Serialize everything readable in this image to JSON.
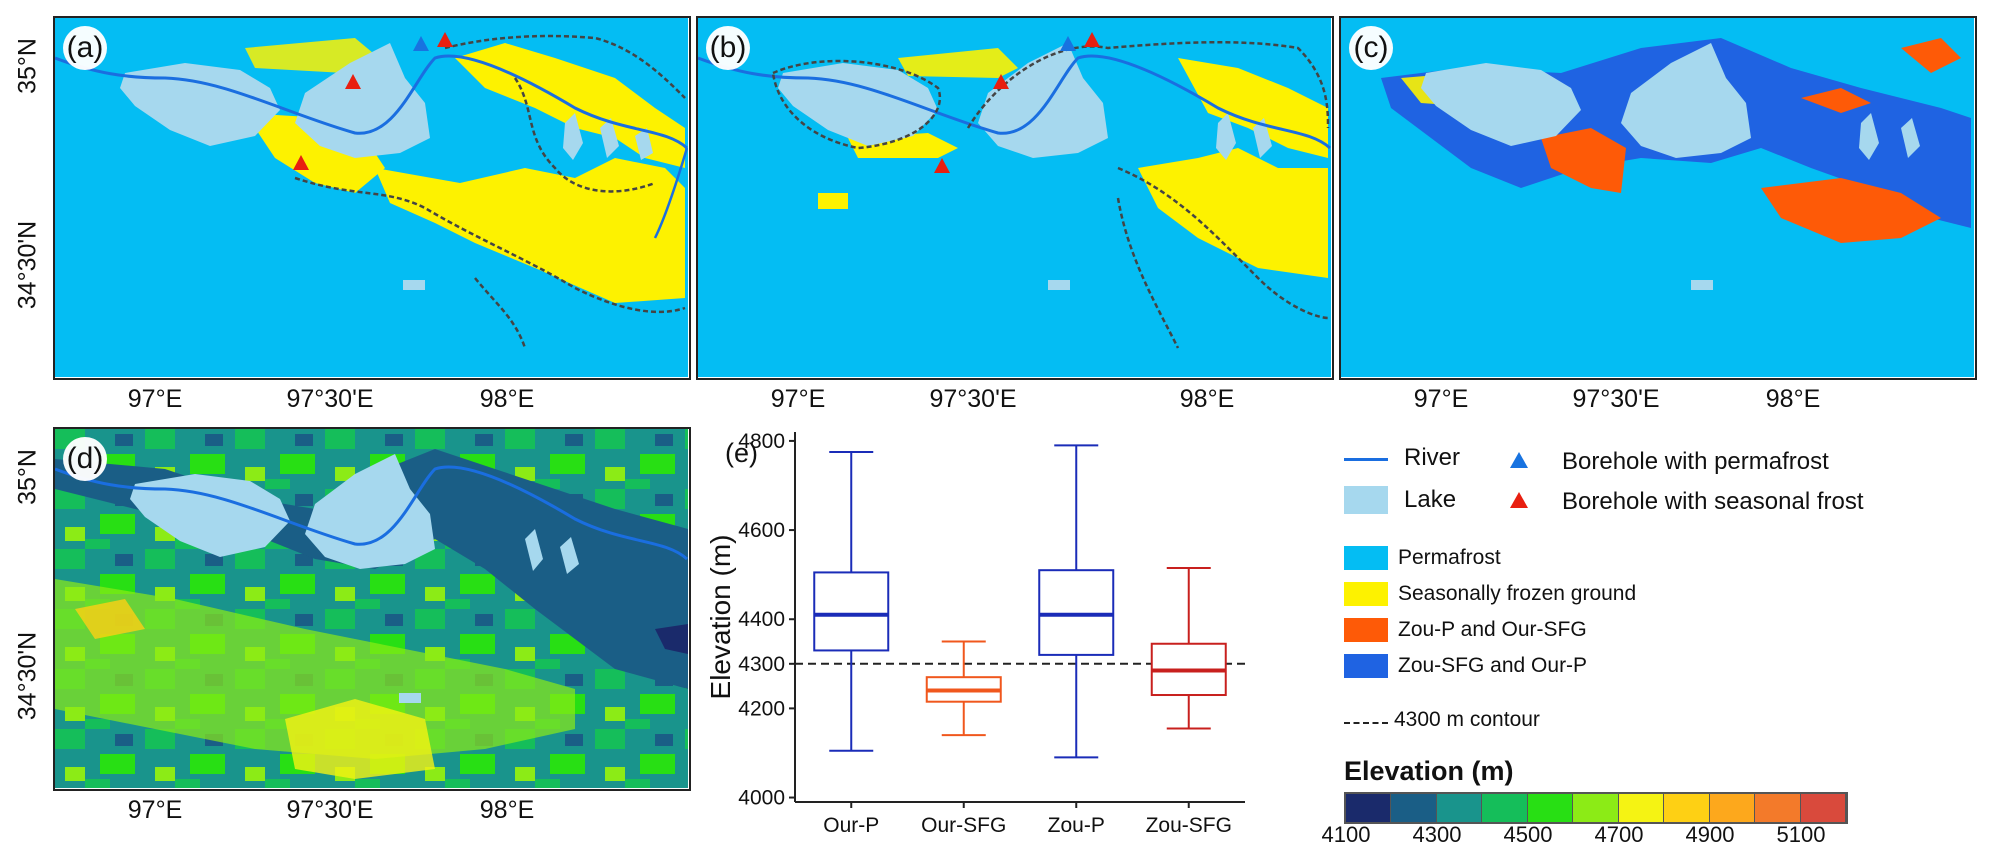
{
  "panels": {
    "a": {
      "label": "(a)"
    },
    "b": {
      "label": "(b)"
    },
    "c": {
      "label": "(c)"
    },
    "d": {
      "label": "(d)"
    },
    "e": {
      "label": "(e)"
    }
  },
  "map_axes": {
    "x_ticks": [
      "97°E",
      "97°30'E",
      "98°E"
    ],
    "y_ticks": [
      "35°N",
      "34°30'N"
    ]
  },
  "legend": {
    "river": "River",
    "lake": "Lake",
    "borehole_permafrost": "Borehole with permafrost",
    "borehole_seasonal": "Borehole with seasonal frost",
    "permafrost": "Permafrost",
    "seasonal": "Seasonally frozen ground",
    "zoup_oursfg": "Zou-P and Our-SFG",
    "zousfg_ourp": "Zou-SFG and Our-P",
    "contour": "4300 m contour"
  },
  "colors": {
    "permafrost": "#04bdf3",
    "seasonal": "#fdf200",
    "zoup_oursfg": "#fe5a07",
    "zousfg_ourp": "#1f63e2",
    "lake": "#a6d8ee",
    "river": "#1a6ee0",
    "borehole_permafrost": "#1873e0",
    "borehole_seasonal": "#e81f10"
  },
  "elevation_scale": {
    "title": "Elevation (m)",
    "tick_labels": [
      "4100",
      "4300",
      "4500",
      "4700",
      "4900",
      "5100"
    ],
    "colors": [
      "#1a2a6b",
      "#1a5e86",
      "#19948c",
      "#15be5a",
      "#28df14",
      "#8ceb16",
      "#f5f313",
      "#fed014",
      "#fda81c",
      "#f37a2a",
      "#d94a3c"
    ]
  },
  "chart_data": {
    "type": "box",
    "title": "",
    "xlabel": "",
    "ylabel": "Elevation (m)",
    "ylim": [
      3990,
      4820
    ],
    "yticks": [
      4000,
      4200,
      4300,
      4400,
      4600,
      4800
    ],
    "reference_line": {
      "value": 4300,
      "style": "dashed"
    },
    "categories": [
      "Our-P",
      "Our-SFG",
      "Zou-P",
      "Zou-SFG"
    ],
    "boxes": [
      {
        "name": "Our-P",
        "min": 4105,
        "q1": 4330,
        "median": 4410,
        "q3": 4505,
        "max": 4775,
        "color": "#1a2cb8"
      },
      {
        "name": "Our-SFG",
        "min": 4140,
        "q1": 4215,
        "median": 4240,
        "q3": 4270,
        "max": 4350,
        "color": "#f0571d"
      },
      {
        "name": "Zou-P",
        "min": 4090,
        "q1": 4320,
        "median": 4410,
        "q3": 4510,
        "max": 4790,
        "color": "#1a2cb8"
      },
      {
        "name": "Zou-SFG",
        "min": 4155,
        "q1": 4230,
        "median": 4285,
        "q3": 4345,
        "max": 4515,
        "color": "#c8201e"
      }
    ]
  }
}
